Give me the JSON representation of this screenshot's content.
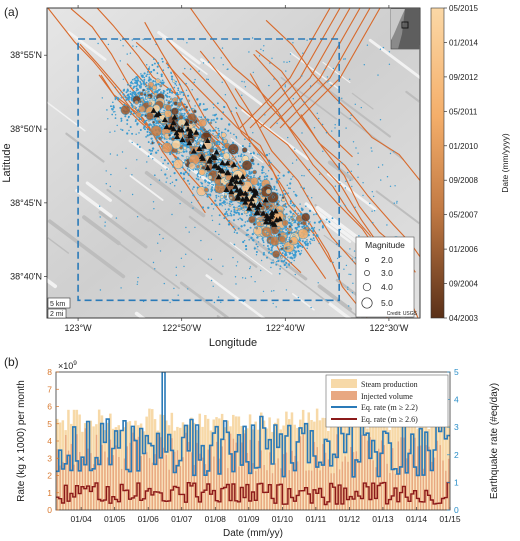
{
  "panel_a": {
    "panel_label": "(a)",
    "xlabel": "Longitude",
    "ylabel": "Latitude",
    "colorbar_label": "Date (mm/yyyy)",
    "colorbar_ticks": [
      "05/2015",
      "01/2014",
      "09/2012",
      "05/2011",
      "01/2010",
      "09/2008",
      "05/2007",
      "01/2006",
      "09/2004",
      "04/2003"
    ],
    "magnitude_legend": {
      "title": "Magnitude",
      "entries": [
        "2.0",
        "3.0",
        "4.0",
        "5.0"
      ]
    },
    "scale_bar": {
      "km": "5 km",
      "mi": "2 mi"
    },
    "credit": "Credit: USGS",
    "colors": {
      "fault": "#d86a2c",
      "dashed_box": "#2a7ab8",
      "small_event": "#3a9bd0",
      "triangle": "#111111"
    }
  },
  "panel_b": {
    "panel_label": "(b)",
    "xlabel": "Date (mm/yy)",
    "ylabel_left": "Rate (kg x 1000) per month",
    "ylabel_right": "Earthquake rate (#eq/day)",
    "left_multiplier": "×10",
    "left_exponent": "9",
    "legend": [
      "Steam production",
      "Injected volume",
      "Eq. rate (m ≥ 2.2)",
      "Eq. rate (m ≥ 2.6)"
    ],
    "colors": {
      "steam": "#f7d9a8",
      "injected": "#e8a882",
      "eq22": "#2a7ab8",
      "eq26": "#8b1a1a",
      "left_axis": "#d8772c",
      "right_axis": "#2a8ec8"
    }
  },
  "chart_data": [
    {
      "type": "scatter",
      "title": "",
      "xlabel": "Longitude",
      "ylabel": "Latitude",
      "x_ticks": [
        "123°W",
        "122°50'W",
        "122°40'W",
        "122°30'W"
      ],
      "x_tick_values": [
        -123.0,
        -122.8333,
        -122.6667,
        -122.5
      ],
      "y_ticks": [
        "38°55'N",
        "38°50'N",
        "38°45'N",
        "38°40'N"
      ],
      "y_tick_values": [
        38.9167,
        38.8333,
        38.75,
        38.6667
      ],
      "xlim": [
        -123.05,
        -122.45
      ],
      "ylim": [
        38.62,
        38.97
      ],
      "dashed_box_lon": [
        -123.0,
        -122.58
      ],
      "dashed_box_lat": [
        38.64,
        38.935
      ],
      "cluster_axis_start": [
        -122.88,
        38.86
      ],
      "cluster_axis_end": [
        -122.67,
        38.72
      ]
    },
    {
      "type": "bar",
      "title": "",
      "xlabel": "Date (mm/yy)",
      "ylabel": "Rate (kg x 1000) per month",
      "ylabel_right": "Earthquake rate (#eq/day)",
      "x_ticks": [
        "01/04",
        "01/05",
        "01/06",
        "01/07",
        "01/08",
        "01/09",
        "01/10",
        "01/11",
        "01/12",
        "01/13",
        "01/14",
        "01/15"
      ],
      "x_start": "04/2003",
      "x_end": "01/2015",
      "ylim": [
        0,
        8
      ],
      "ylim_units": "x10^9",
      "y_ticks": [
        0,
        1,
        2,
        3,
        4,
        5,
        6,
        7,
        8
      ],
      "ylim_right": [
        0,
        5
      ],
      "y_ticks_right": [
        0,
        1,
        2,
        3,
        4,
        5
      ],
      "series": [
        {
          "name": "Steam production",
          "kind": "bar",
          "typical_value": 5.2
        },
        {
          "name": "Injected volume",
          "kind": "bar",
          "typical_value": 3.6
        },
        {
          "name": "Eq. rate (m ≥ 2.2)",
          "kind": "step",
          "axis": "right",
          "typical_value": 2.3,
          "max": 5.0,
          "max_date": "06/2006"
        },
        {
          "name": "Eq. rate (m ≥ 2.6)",
          "kind": "step",
          "axis": "right",
          "typical_value": 0.6
        }
      ]
    }
  ]
}
